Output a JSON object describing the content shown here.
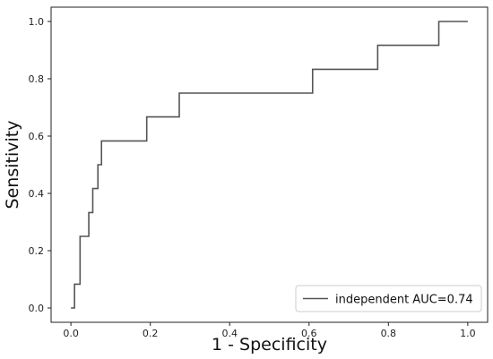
{
  "chart_data": {
    "type": "line",
    "xlabel": "1 - Specificity",
    "ylabel": "Sensitivity",
    "xlim": [
      -0.05,
      1.05
    ],
    "ylim": [
      -0.05,
      1.05
    ],
    "xticks": [
      "0.0",
      "0.2",
      "0.4",
      "0.6",
      "0.8",
      "1.0"
    ],
    "yticks": [
      "0.0",
      "0.2",
      "0.4",
      "0.6",
      "0.8",
      "1.0"
    ],
    "grid": false,
    "legend_position": "lower-right",
    "series": [
      {
        "name": "independent AUC=0.74",
        "color": "#555555",
        "step": true,
        "x": [
          0.0,
          0.009,
          0.009,
          0.023,
          0.023,
          0.045,
          0.045,
          0.055,
          0.055,
          0.068,
          0.068,
          0.077,
          0.077,
          0.091,
          0.091,
          0.191,
          0.191,
          0.273,
          0.273,
          0.609,
          0.609,
          0.773,
          0.773,
          0.927,
          0.927,
          1.0
        ],
        "y": [
          0.0,
          0.0,
          0.083,
          0.083,
          0.25,
          0.25,
          0.333,
          0.333,
          0.417,
          0.417,
          0.5,
          0.5,
          0.583,
          0.583,
          0.583,
          0.583,
          0.667,
          0.667,
          0.75,
          0.75,
          0.833,
          0.833,
          0.917,
          0.917,
          1.0,
          1.0
        ]
      }
    ]
  }
}
